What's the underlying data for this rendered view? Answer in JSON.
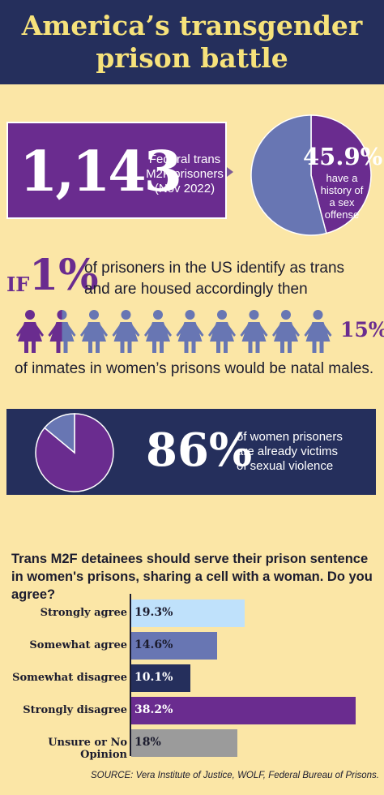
{
  "header": {
    "title_line1": "America’s transgender",
    "title_line2": "prison battle"
  },
  "federal": {
    "count": "1,143",
    "label_line1": "Federal trans",
    "label_line2": "M2F prisoners",
    "label_line3": "(Nov 2022)"
  },
  "sex_offense": {
    "percent_text": "45.9%",
    "label_line1": "have a",
    "label_line2": "history of",
    "label_line3": "a sex",
    "label_line4": "offense"
  },
  "if_statement": {
    "if_word": "IF",
    "percent_text": "1%",
    "text_line1": "of prisoners in the US identify as trans",
    "text_line2": "and are housed accordingly then",
    "natal_percent_text": "15%",
    "inmates_text": "of inmates in women’s prisons would be natal males."
  },
  "victims": {
    "percent_text": "86%",
    "label_line1": "of women prisoners",
    "label_line2": "are already victims",
    "label_line3": "of sexual violence"
  },
  "survey": {
    "question": "Trans M2F detainees should serve their prison sentence in women's prisons, sharing a cell with a woman. Do you agree?"
  },
  "source": "SOURCE: Vera Institute of Justice, WOLF, Federal Bureau of Prisons.",
  "colors": {
    "navy": "#252f5c",
    "purple": "#6a2c8f",
    "steel_blue": "#6876b3",
    "light_blue": "#bfe1fb",
    "gray": "#9b9b9b",
    "yellow": "#f6e27b",
    "background": "#fbe6a6"
  },
  "icons": {
    "figure_total": 10,
    "figure_solid_purple": 1,
    "figure_half_purple": 1,
    "icon_name": "woman-figure-icon"
  },
  "chart_data": [
    {
      "type": "pie",
      "categories": [
        "have a history of a sex offense",
        "other"
      ],
      "values": [
        45.9,
        54.1
      ],
      "colors": [
        "#6a2c8f",
        "#6876b3"
      ]
    },
    {
      "type": "pie",
      "categories": [
        "already victims of sexual violence",
        "other"
      ],
      "values": [
        86,
        14
      ],
      "colors": [
        "#6a2c8f",
        "#6876b3"
      ]
    },
    {
      "type": "bar",
      "orientation": "horizontal",
      "categories": [
        "Strongly agree",
        "Somewhat agree",
        "Somewhat disagree",
        "Strongly disagree",
        "Unsure or No Opinion"
      ],
      "values": [
        19.3,
        14.6,
        10.1,
        38.2,
        18
      ],
      "labels": [
        "19.3%",
        "14.6%",
        "10.1%",
        "38.2%",
        "18%"
      ],
      "colors": [
        "#bfe1fb",
        "#6876b3",
        "#252f5c",
        "#6a2c8f",
        "#9b9b9b"
      ],
      "label_colors": [
        "#1c1c2e",
        "#1c1c2e",
        "#ffffff",
        "#ffffff",
        "#1c1c2e"
      ],
      "xlim": [
        0,
        40
      ]
    }
  ]
}
